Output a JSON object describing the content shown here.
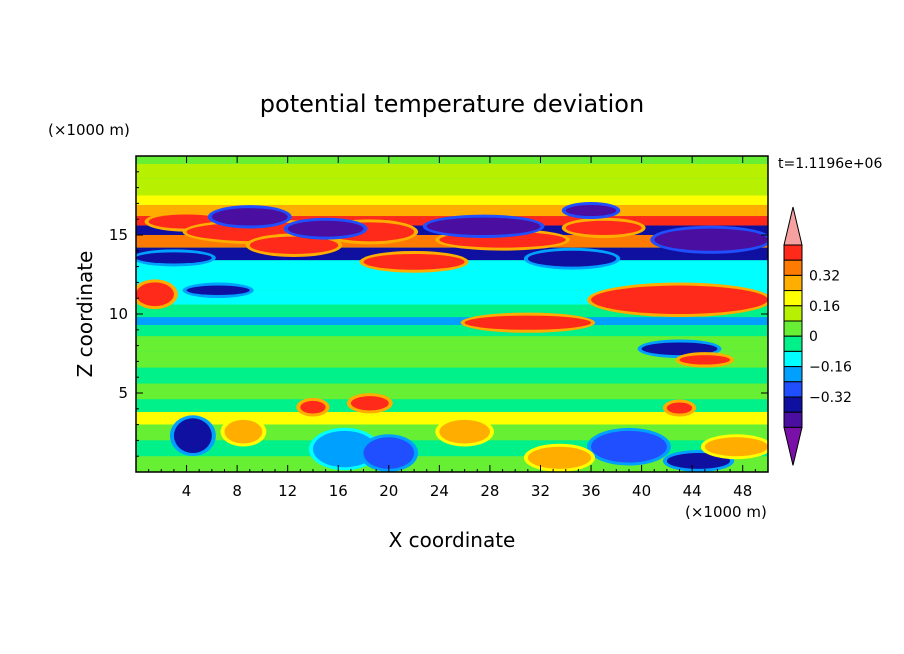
{
  "chart_data": {
    "type": "heatmap",
    "title": "potential temperature deviation",
    "xlabel": "X coordinate",
    "ylabel": "Z coordinate",
    "x_unit": "(×1000 m)",
    "y_unit": "(×1000 m)",
    "time_label": "t=1.1196e+06",
    "xlim": [
      0,
      50
    ],
    "ylim": [
      0,
      20
    ],
    "x_ticks": [
      4,
      8,
      12,
      16,
      20,
      24,
      28,
      32,
      36,
      40,
      44,
      48
    ],
    "y_ticks": [
      5,
      10,
      15
    ],
    "colorbar": {
      "levels": [
        -0.48,
        -0.4,
        -0.32,
        -0.24,
        -0.16,
        -0.08,
        0,
        0.08,
        0.16,
        0.24,
        0.32,
        0.4
      ],
      "labeled_levels": [
        0.32,
        0.16,
        0,
        -0.16,
        -0.32
      ],
      "colors_low_to_high": [
        "#7a10a8",
        "#4a0fa0",
        "#1010a0",
        "#1f4fff",
        "#00a0ff",
        "#00ffff",
        "#00f08a",
        "#66ef33",
        "#b7f000",
        "#ffff00",
        "#ffae00",
        "#ff7a00",
        "#ff2a1a",
        "#f6a0a0"
      ],
      "extend": "both"
    },
    "bands": [
      {
        "z": 19.5,
        "value": 0.05
      },
      {
        "z": 18.6,
        "value": 0.1
      },
      {
        "z": 17.5,
        "value": 0.12
      },
      {
        "z": 16.9,
        "value": 0.22
      },
      {
        "z": 16.2,
        "value": 0.3
      },
      {
        "z": 15.6,
        "value": 0.45
      },
      {
        "z": 15.0,
        "value": -0.4
      },
      {
        "z": 14.2,
        "value": 0.38
      },
      {
        "z": 13.4,
        "value": -0.36
      },
      {
        "z": 12.5,
        "value": -0.14
      },
      {
        "z": 11.5,
        "value": -0.12
      },
      {
        "z": 10.6,
        "value": -0.1
      },
      {
        "z": 9.8,
        "value": -0.06
      },
      {
        "z": 9.3,
        "value": -0.2
      },
      {
        "z": 8.6,
        "value": -0.02
      },
      {
        "z": 7.6,
        "value": 0.05
      },
      {
        "z": 6.6,
        "value": 0.0
      },
      {
        "z": 5.6,
        "value": -0.02
      },
      {
        "z": 4.6,
        "value": 0.02
      },
      {
        "z": 3.8,
        "value": -0.06
      },
      {
        "z": 3.0,
        "value": 0.18
      },
      {
        "z": 2.0,
        "value": 0.05
      },
      {
        "z": 1.0,
        "value": -0.04
      },
      {
        "z": 0.0,
        "value": 0.02
      }
    ],
    "features": [
      {
        "x": [
          1,
          7
        ],
        "z": [
          15.4,
          16.3
        ],
        "value": 0.45
      },
      {
        "x": [
          4,
          16
        ],
        "z": [
          14.6,
          15.8
        ],
        "value": 0.45
      },
      {
        "x": [
          9,
          16
        ],
        "z": [
          13.8,
          14.9
        ],
        "value": 0.45
      },
      {
        "x": [
          15,
          22
        ],
        "z": [
          14.6,
          15.8
        ],
        "value": 0.45
      },
      {
        "x": [
          24,
          34
        ],
        "z": [
          14.2,
          15.2
        ],
        "value": 0.45
      },
      {
        "x": [
          34,
          40
        ],
        "z": [
          15.0,
          15.9
        ],
        "value": 0.45
      },
      {
        "x": [
          18,
          26
        ],
        "z": [
          12.8,
          13.8
        ],
        "value": 0.45
      },
      {
        "x": [
          26,
          36
        ],
        "z": [
          9.0,
          9.9
        ],
        "value": 0.45
      },
      {
        "x": [
          36,
          50
        ],
        "z": [
          10.0,
          11.8
        ],
        "value": 0.45
      },
      {
        "x": [
          0,
          3
        ],
        "z": [
          10.5,
          12.0
        ],
        "value": 0.45
      },
      {
        "x": [
          6,
          12
        ],
        "z": [
          15.6,
          16.7
        ],
        "value": -0.48
      },
      {
        "x": [
          12,
          18
        ],
        "z": [
          14.9,
          15.9
        ],
        "value": -0.42
      },
      {
        "x": [
          23,
          32
        ],
        "z": [
          15.0,
          16.1
        ],
        "value": -0.45
      },
      {
        "x": [
          34,
          38
        ],
        "z": [
          16.2,
          16.9
        ],
        "value": -0.48
      },
      {
        "x": [
          41,
          50
        ],
        "z": [
          14.0,
          15.4
        ],
        "value": -0.45
      },
      {
        "x": [
          31,
          38
        ],
        "z": [
          13.0,
          14.0
        ],
        "value": -0.4
      },
      {
        "x": [
          0,
          6
        ],
        "z": [
          13.2,
          13.9
        ],
        "value": -0.4
      },
      {
        "x": [
          4,
          9
        ],
        "z": [
          11.2,
          11.8
        ],
        "value": -0.36
      },
      {
        "x": [
          40,
          46
        ],
        "z": [
          7.4,
          8.2
        ],
        "value": -0.36
      },
      {
        "x": [
          43,
          47
        ],
        "z": [
          6.8,
          7.4
        ],
        "value": 0.45
      },
      {
        "x": [
          17,
          20
        ],
        "z": [
          3.9,
          4.8
        ],
        "value": 0.45
      },
      {
        "x": [
          13,
          15
        ],
        "z": [
          3.7,
          4.5
        ],
        "value": 0.45
      },
      {
        "x": [
          42,
          44
        ],
        "z": [
          3.7,
          4.4
        ],
        "value": 0.45
      },
      {
        "x": [
          3,
          6
        ],
        "z": [
          1.2,
          3.4
        ],
        "value": -0.36
      },
      {
        "x": [
          14,
          19
        ],
        "z": [
          0.3,
          2.6
        ],
        "value": -0.24
      },
      {
        "x": [
          18,
          22
        ],
        "z": [
          0.2,
          2.2
        ],
        "value": -0.32
      },
      {
        "x": [
          36,
          42
        ],
        "z": [
          0.6,
          2.6
        ],
        "value": -0.3
      },
      {
        "x": [
          42,
          47
        ],
        "z": [
          0.2,
          1.2
        ],
        "value": -0.36
      },
      {
        "x": [
          31,
          36
        ],
        "z": [
          0.2,
          1.6
        ],
        "value": 0.3
      },
      {
        "x": [
          24,
          28
        ],
        "z": [
          1.8,
          3.3
        ],
        "value": 0.3
      },
      {
        "x": [
          7,
          10
        ],
        "z": [
          1.8,
          3.3
        ],
        "value": 0.3
      },
      {
        "x": [
          45,
          50
        ],
        "z": [
          1.0,
          2.2
        ],
        "value": 0.3
      }
    ]
  }
}
